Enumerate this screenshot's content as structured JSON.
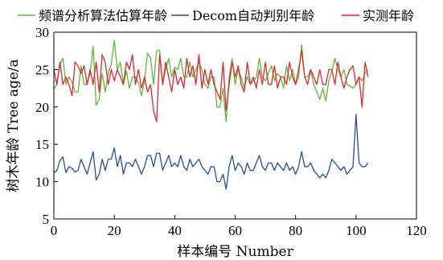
{
  "chart_data": {
    "type": "line",
    "title": "",
    "xlabel": "样本编号 Number",
    "ylabel": "树木年龄 Tree age/a",
    "xlim": [
      0,
      120
    ],
    "ylim": [
      5,
      30
    ],
    "xticks": [
      0,
      20,
      40,
      60,
      80,
      100,
      120
    ],
    "yticks": [
      5,
      10,
      15,
      20,
      25,
      30
    ],
    "grid": false,
    "legend_position": "top",
    "series": [
      {
        "name": "频谱分析算法估算年龄",
        "color": "#5cb83a",
        "x": [
          0,
          1,
          2,
          3,
          4,
          5,
          6,
          7,
          8,
          9,
          10,
          11,
          12,
          13,
          14,
          15,
          16,
          17,
          18,
          19,
          20,
          21,
          22,
          23,
          24,
          25,
          26,
          27,
          28,
          29,
          30,
          31,
          32,
          33,
          34,
          35,
          36,
          37,
          38,
          39,
          40,
          41,
          42,
          43,
          44,
          45,
          46,
          47,
          48,
          49,
          50,
          51,
          52,
          53,
          54,
          55,
          56,
          57,
          58,
          59,
          60,
          61,
          62,
          63,
          64,
          65,
          66,
          67,
          68,
          69,
          70,
          71,
          72,
          73,
          74,
          75,
          76,
          77,
          78,
          79,
          80,
          81,
          82,
          83,
          84,
          85,
          86,
          87,
          88,
          89,
          90,
          91,
          92,
          93,
          94,
          95,
          96,
          97,
          98,
          99,
          100,
          101,
          102,
          103,
          104
        ],
        "values": [
          22.4,
          23.0,
          25.7,
          26.5,
          23.0,
          24.0,
          23.3,
          22.0,
          22.0,
          25.5,
          23.0,
          23.0,
          24.5,
          28.1,
          20.2,
          21.0,
          24.5,
          22.0,
          24.6,
          25.7,
          28.9,
          25.0,
          26.0,
          23.0,
          24.8,
          22.5,
          24.0,
          24.0,
          23.2,
          21.5,
          23.5,
          27.2,
          26.5,
          23.0,
          27.5,
          27.6,
          23.0,
          25.0,
          26.5,
          24.0,
          25.3,
          25.0,
          26.5,
          24.0,
          24.0,
          26.0,
          24.0,
          25.0,
          26.0,
          25.0,
          23.0,
          22.5,
          24.0,
          24.0,
          20.0,
          20.0,
          22.5,
          18.0,
          24.0,
          26.5,
          23.0,
          25.0,
          24.0,
          22.5,
          24.0,
          23.0,
          23.5,
          24.0,
          26.5,
          24.0,
          23.5,
          24.5,
          25.5,
          23.5,
          24.5,
          24.0,
          22.5,
          25.5,
          23.5,
          25.0,
          23.0,
          24.0,
          28.3,
          24.0,
          24.0,
          25.0,
          23.0,
          22.0,
          21.0,
          22.5,
          20.8,
          23.5,
          24.8,
          26.5,
          25.0,
          24.0,
          25.0,
          23.0,
          22.8,
          22.5,
          23.0,
          24.0,
          23.5,
          24.5,
          25.0
        ]
      },
      {
        "name": "Decom自动判别年龄",
        "color": "#1f4fa0",
        "x": [
          0,
          1,
          2,
          3,
          4,
          5,
          6,
          7,
          8,
          9,
          10,
          11,
          12,
          13,
          14,
          15,
          16,
          17,
          18,
          19,
          20,
          21,
          22,
          23,
          24,
          25,
          26,
          27,
          28,
          29,
          30,
          31,
          32,
          33,
          34,
          35,
          36,
          37,
          38,
          39,
          40,
          41,
          42,
          43,
          44,
          45,
          46,
          47,
          48,
          49,
          50,
          51,
          52,
          53,
          54,
          55,
          56,
          57,
          58,
          59,
          60,
          61,
          62,
          63,
          64,
          65,
          66,
          67,
          68,
          69,
          70,
          71,
          72,
          73,
          74,
          75,
          76,
          77,
          78,
          79,
          80,
          81,
          82,
          83,
          84,
          85,
          86,
          87,
          88,
          89,
          90,
          91,
          92,
          93,
          94,
          95,
          96,
          97,
          98,
          99,
          100,
          101,
          102,
          103,
          104
        ],
        "values": [
          11.2,
          11.5,
          12.8,
          13.3,
          11.2,
          12.0,
          11.8,
          11.3,
          11.5,
          13.0,
          12.0,
          11.0,
          12.5,
          14.0,
          10.2,
          11.0,
          13.0,
          11.5,
          13.0,
          13.0,
          14.5,
          12.0,
          13.5,
          11.0,
          12.5,
          12.5,
          12.0,
          13.0,
          12.0,
          11.0,
          12.0,
          13.5,
          13.5,
          12.0,
          13.8,
          13.8,
          11.5,
          12.5,
          13.5,
          12.0,
          12.5,
          12.0,
          13.5,
          12.0,
          11.5,
          13.0,
          12.0,
          12.5,
          13.0,
          12.0,
          11.5,
          11.0,
          12.0,
          12.0,
          10.0,
          10.0,
          11.0,
          9.0,
          12.0,
          13.5,
          11.5,
          12.5,
          12.0,
          11.0,
          12.5,
          11.5,
          11.5,
          12.5,
          13.5,
          12.0,
          11.5,
          12.5,
          12.5,
          11.5,
          12.5,
          12.0,
          11.5,
          12.5,
          11.5,
          12.0,
          11.0,
          12.0,
          14.0,
          12.0,
          12.0,
          12.5,
          11.5,
          11.0,
          10.5,
          11.0,
          10.5,
          11.5,
          13.0,
          12.5,
          12.0,
          11.5,
          12.0,
          11.0,
          11.5,
          12.0,
          19.0,
          12.5,
          12.0,
          12.0,
          12.5
        ]
      },
      {
        "name": "实测年龄",
        "color": "#e0262b",
        "x": [
          0,
          1,
          2,
          3,
          4,
          5,
          6,
          7,
          8,
          9,
          10,
          11,
          12,
          13,
          14,
          15,
          16,
          17,
          18,
          19,
          20,
          21,
          22,
          23,
          24,
          25,
          26,
          27,
          28,
          29,
          30,
          31,
          32,
          33,
          34,
          35,
          36,
          37,
          38,
          39,
          40,
          41,
          42,
          43,
          44,
          45,
          46,
          47,
          48,
          49,
          50,
          51,
          52,
          53,
          54,
          55,
          56,
          57,
          58,
          59,
          60,
          61,
          62,
          63,
          64,
          65,
          66,
          67,
          68,
          69,
          70,
          71,
          72,
          73,
          74,
          75,
          76,
          77,
          78,
          79,
          80,
          81,
          82,
          83,
          84,
          85,
          86,
          87,
          88,
          89,
          90,
          91,
          92,
          93,
          94,
          95,
          96,
          97,
          98,
          99,
          100,
          101,
          102,
          103,
          104
        ],
        "values": [
          25.0,
          23.0,
          26.0,
          23.0,
          24.0,
          23.0,
          21.5,
          26.0,
          25.5,
          24.5,
          25.5,
          23.0,
          25.0,
          23.0,
          26.0,
          22.0,
          27.0,
          26.0,
          23.0,
          25.0,
          23.5,
          25.0,
          24.0,
          23.0,
          26.0,
          25.0,
          27.0,
          23.0,
          25.0,
          22.5,
          24.0,
          22.0,
          23.0,
          19.5,
          18.0,
          27.0,
          23.0,
          26.0,
          24.0,
          22.0,
          25.0,
          23.0,
          24.0,
          22.5,
          26.5,
          24.0,
          25.5,
          23.0,
          27.0,
          22.5,
          25.0,
          23.0,
          25.0,
          23.0,
          22.0,
          21.0,
          26.0,
          19.5,
          23.0,
          26.0,
          24.0,
          25.5,
          23.0,
          22.0,
          26.0,
          23.0,
          24.0,
          22.5,
          25.0,
          23.0,
          26.0,
          23.0,
          23.0,
          25.5,
          22.5,
          24.0,
          24.0,
          23.0,
          26.0,
          24.0,
          23.0,
          25.0,
          27.5,
          24.0,
          23.0,
          25.0,
          24.0,
          23.0,
          25.0,
          23.0,
          23.0,
          25.0,
          25.0,
          23.0,
          26.0,
          24.0,
          22.5,
          24.0,
          25.0,
          25.5,
          23.0,
          24.0,
          20.0,
          26.0,
          24.0
        ]
      }
    ]
  }
}
